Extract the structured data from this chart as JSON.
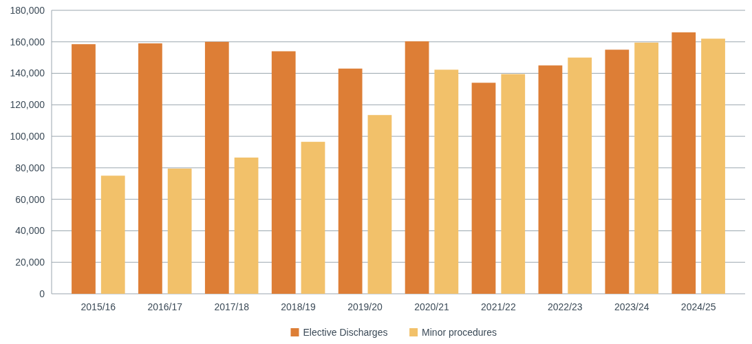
{
  "chart_data": {
    "type": "bar",
    "categories": [
      "2015/16",
      "2016/17",
      "2017/18",
      "2018/19",
      "2019/20",
      "2020/21",
      "2021/22",
      "2022/23",
      "2023/24",
      "2024/25"
    ],
    "series": [
      {
        "name": "Elective Discharges",
        "color": "#dd7e36",
        "values": [
          158500,
          159000,
          160000,
          154000,
          143000,
          160300,
          134000,
          145000,
          155000,
          166000
        ]
      },
      {
        "name": "Minor procedures",
        "color": "#f2c16a",
        "values": [
          75000,
          79500,
          86500,
          96500,
          113500,
          142300,
          139500,
          150000,
          159500,
          162000
        ]
      }
    ],
    "ylim": [
      0,
      180000
    ],
    "yticks": [
      {
        "value": 0,
        "label": "0"
      },
      {
        "value": 20000,
        "label": "20,000"
      },
      {
        "value": 40000,
        "label": "40,000"
      },
      {
        "value": 60000,
        "label": "60,000"
      },
      {
        "value": 80000,
        "label": "80,000"
      },
      {
        "value": 100000,
        "label": "100,000"
      },
      {
        "value": 120000,
        "label": "120,000"
      },
      {
        "value": 140000,
        "label": "140,000"
      },
      {
        "value": 160000,
        "label": "160,000"
      },
      {
        "value": 180000,
        "label": "180,000"
      }
    ],
    "grid": "y",
    "legend": "bottom"
  }
}
